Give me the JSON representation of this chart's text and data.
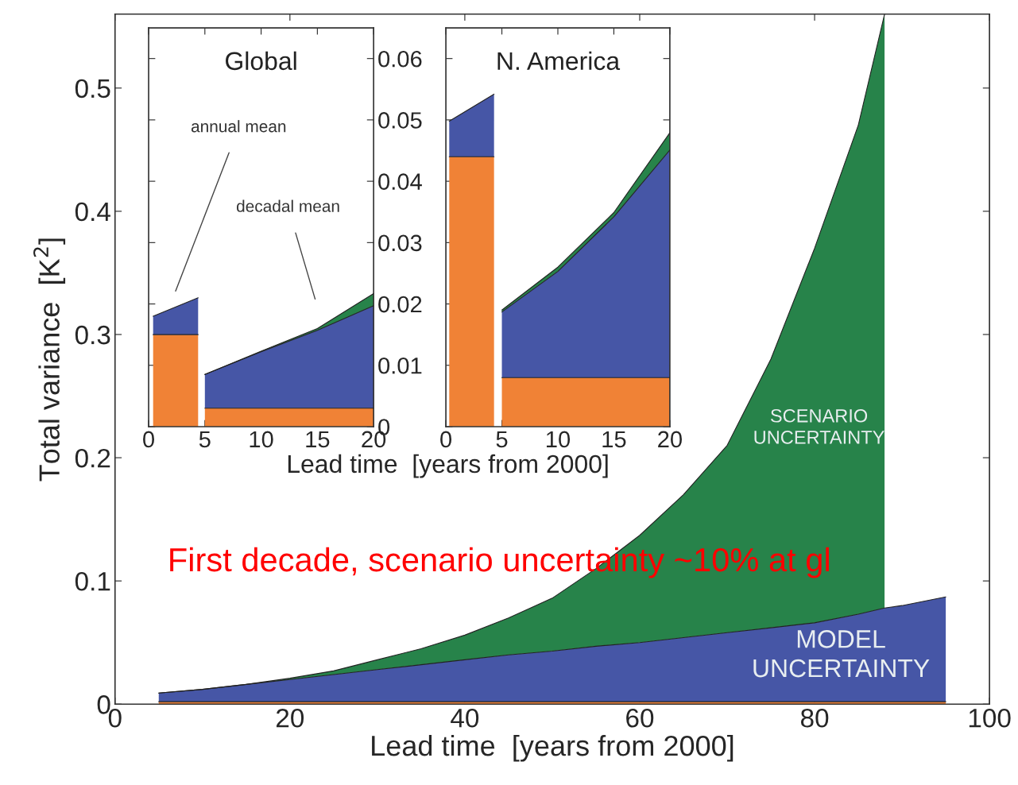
{
  "chart_data": [
    {
      "type": "area",
      "stacked": true,
      "xlabel": "Lead time  [years from 2000]",
      "ylabel": "Total variance  [K$^{2}$]",
      "x": [
        5,
        10,
        15,
        20,
        25,
        30,
        35,
        40,
        45,
        50,
        55,
        60,
        65,
        70,
        75,
        80,
        85,
        88,
        90,
        95
      ],
      "series": [
        {
          "color": "#f08236",
          "values": [
            0.002,
            0.002,
            0.002,
            0.002,
            0.002,
            0.002,
            0.002,
            0.002,
            0.002,
            0.002,
            0.002,
            0.002,
            0.002,
            0.002,
            0.002,
            0.002,
            0.002,
            0.002,
            0.002,
            0.002
          ]
        },
        {
          "name": "MODEL\nUNCERTAINTY",
          "color": "#4656a6",
          "values": [
            0.007,
            0.01,
            0.014,
            0.018,
            0.022,
            0.026,
            0.03,
            0.034,
            0.038,
            0.041,
            0.045,
            0.048,
            0.052,
            0.056,
            0.06,
            0.064,
            0.071,
            0.076,
            0.078,
            0.085
          ]
        },
        {
          "name": "SCENARIO\nUNCERTAINTY",
          "color": "#27834a",
          "values": [
            0,
            0,
            0,
            0.001,
            0.003,
            0.008,
            0.013,
            0.02,
            0.03,
            0.043,
            0.063,
            0.087,
            0.116,
            0.152,
            0.218,
            0.304,
            0.397,
            0.482,
            null,
            null
          ]
        }
      ],
      "xlim": [
        0,
        100
      ],
      "xticks": [
        0,
        20,
        40,
        60,
        80,
        100
      ],
      "ylim": [
        0,
        0.56
      ],
      "yticks": [
        0,
        0.1,
        0.2,
        0.3,
        0.4,
        0.5
      ],
      "annotations": [
        "First decade, scenario uncertainty ~10% at gl"
      ]
    },
    {
      "type": "area",
      "stacked": true,
      "title": "Global",
      "xlabel": "Lead time  [years from 2000]",
      "x": [
        0.4,
        4.4,
        4.7,
        5,
        10,
        15,
        20
      ],
      "series": [
        {
          "color": "#f08236",
          "values": [
            0.015,
            0.015,
            null,
            0.003,
            0.003,
            0.003,
            0.003
          ]
        },
        {
          "color": "#4656a6",
          "values": [
            0.003,
            0.006,
            null,
            0.0055,
            0.0092,
            0.0127,
            0.0167
          ]
        },
        {
          "color": "#27834a",
          "values": [
            null,
            null,
            null,
            0,
            0.0001,
            0.0003,
            0.002
          ]
        }
      ],
      "xlim": [
        0,
        20
      ],
      "xticks": [
        0,
        5,
        10,
        15,
        20
      ],
      "ylim": [
        0,
        0.065
      ],
      "yticks": [
        0,
        0.01,
        0.02,
        0.03,
        0.04,
        0.05,
        0.06
      ],
      "annotations": [
        "annual mean",
        "decadal mean"
      ]
    },
    {
      "type": "area",
      "stacked": true,
      "title": "N. America",
      "x": [
        0.3,
        4.3,
        4.6,
        5,
        10,
        15,
        20
      ],
      "series": [
        {
          "color": "#f08236",
          "values": [
            0.044,
            0.044,
            null,
            0.008,
            0.008,
            0.008,
            0.008
          ]
        },
        {
          "color": "#4656a6",
          "values": [
            0.0058,
            0.0102,
            null,
            0.0107,
            0.0173,
            0.0262,
            0.0371
          ]
        },
        {
          "color": "#27834a",
          "values": [
            null,
            null,
            null,
            0.0003,
            0.0007,
            0.0007,
            0.0028
          ]
        }
      ],
      "xlim": [
        0,
        20
      ],
      "xticks": [
        0,
        5,
        10,
        15,
        20
      ],
      "ylim": [
        0,
        0.065
      ],
      "tick_labels": "x",
      "yticks": [
        {
          "value": 0,
          "label": null
        },
        {
          "value": 0.01,
          "label": null
        },
        {
          "value": 0.02,
          "label": null
        },
        {
          "value": 0.03,
          "label": null
        },
        {
          "value": 0.04,
          "label": null
        },
        {
          "value": 0.05,
          "label": null
        },
        {
          "value": 0.06,
          "label": null
        }
      ]
    }
  ]
}
